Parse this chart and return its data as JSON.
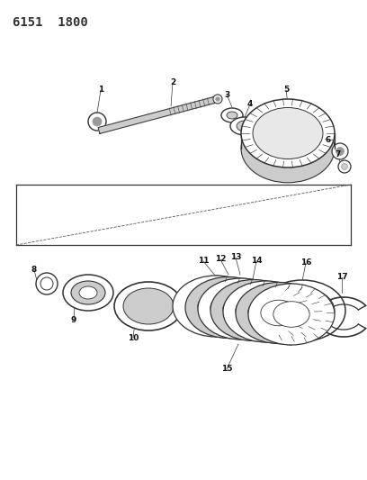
{
  "title": "6151  1800",
  "bg_color": "#ffffff",
  "line_color": "#333333",
  "gray_light": "#cccccc",
  "gray_mid": "#999999",
  "gray_dark": "#555555"
}
